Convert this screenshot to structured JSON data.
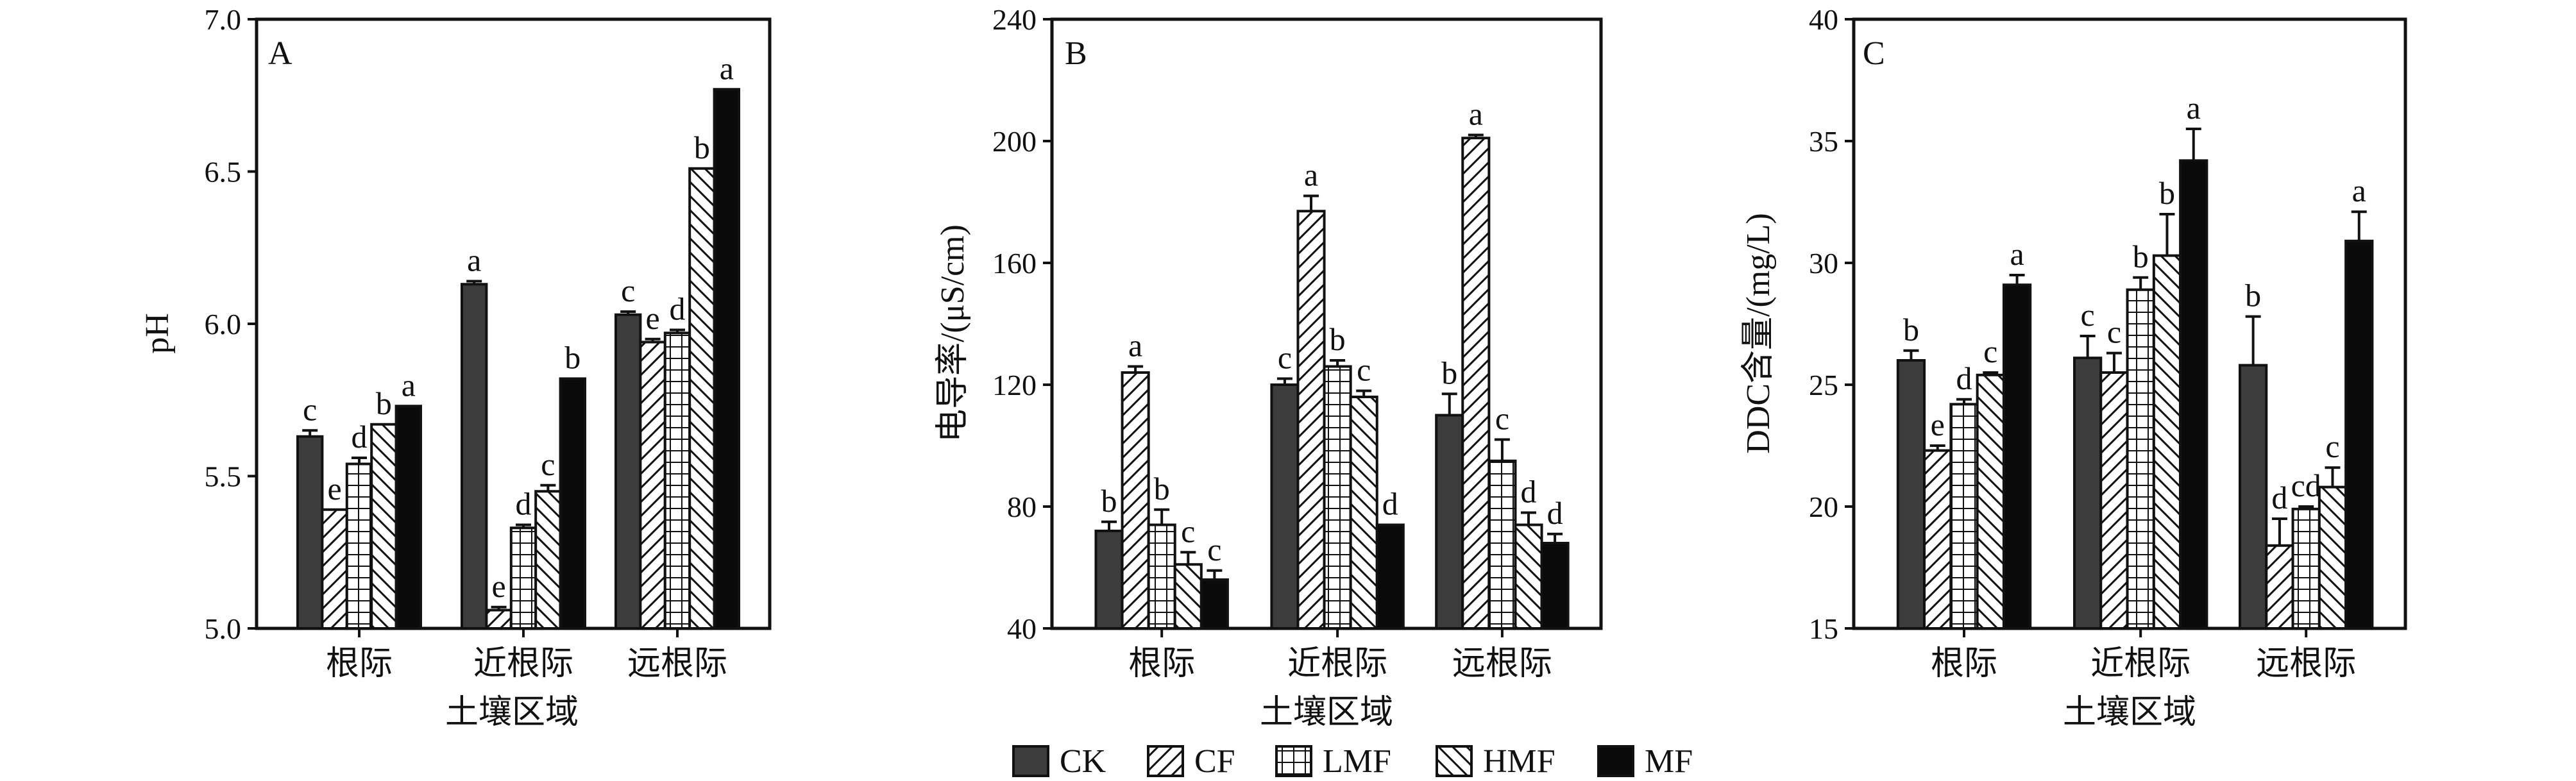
{
  "legend": [
    {
      "name": "CK",
      "pattern": "solid-dark"
    },
    {
      "name": "CF",
      "pattern": "diag-right"
    },
    {
      "name": "LMF",
      "pattern": "grid"
    },
    {
      "name": "HMF",
      "pattern": "diag-left"
    },
    {
      "name": "MF",
      "pattern": "solid-black"
    }
  ],
  "colors": {
    "CK": "#3c3c3c",
    "MF": "#0a0a0a",
    "axis": "#111111"
  },
  "chart_data": [
    {
      "type": "bar",
      "panel": "A",
      "ylabel": "pH",
      "xlabel": "土壤区域",
      "ylim": [
        5.0,
        7.0
      ],
      "yticks": [
        "5.0",
        "5.5",
        "6.0",
        "6.5",
        "7.0"
      ],
      "categories": [
        "根际",
        "近根际",
        "远根际"
      ],
      "series": [
        {
          "name": "CK",
          "values": [
            5.63,
            6.13,
            6.03
          ],
          "errors": [
            0.02,
            0.01,
            0.01
          ],
          "letters": [
            "c",
            "a",
            "c"
          ]
        },
        {
          "name": "CF",
          "values": [
            5.39,
            5.06,
            5.94
          ],
          "errors": [
            0.0,
            0.01,
            0.01
          ],
          "letters": [
            "e",
            "e",
            "e"
          ]
        },
        {
          "name": "LMF",
          "values": [
            5.54,
            5.33,
            5.97
          ],
          "errors": [
            0.02,
            0.01,
            0.01
          ],
          "letters": [
            "d",
            "d",
            "d"
          ]
        },
        {
          "name": "HMF",
          "values": [
            5.67,
            5.45,
            6.51
          ],
          "errors": [
            0.0,
            0.02,
            0.0
          ],
          "letters": [
            "b",
            "c",
            "b"
          ]
        },
        {
          "name": "MF",
          "values": [
            5.73,
            5.82,
            6.77
          ],
          "errors": [
            0.0,
            0.0,
            0.0
          ],
          "letters": [
            "a",
            "b",
            "a"
          ]
        }
      ]
    },
    {
      "type": "bar",
      "panel": "B",
      "ylabel": "电导率/(μS/cm)",
      "xlabel": "土壤区域",
      "ylim": [
        40,
        240
      ],
      "yticks": [
        "40",
        "80",
        "120",
        "160",
        "200",
        "240"
      ],
      "categories": [
        "根际",
        "近根际",
        "远根际"
      ],
      "series": [
        {
          "name": "CK",
          "values": [
            72,
            120,
            110
          ],
          "errors": [
            3,
            2,
            7
          ],
          "letters": [
            "b",
            "c",
            "b"
          ]
        },
        {
          "name": "CF",
          "values": [
            124,
            177,
            201
          ],
          "errors": [
            2,
            5,
            1
          ],
          "letters": [
            "a",
            "a",
            "a"
          ]
        },
        {
          "name": "LMF",
          "values": [
            74,
            126,
            95
          ],
          "errors": [
            5,
            2,
            7
          ],
          "letters": [
            "b",
            "b",
            "c"
          ]
        },
        {
          "name": "HMF",
          "values": [
            61,
            116,
            74
          ],
          "errors": [
            4,
            2,
            4
          ],
          "letters": [
            "c",
            "c",
            "d"
          ]
        },
        {
          "name": "MF",
          "values": [
            56,
            74,
            68
          ],
          "errors": [
            3,
            0,
            3
          ],
          "letters": [
            "c",
            "d",
            "d"
          ]
        }
      ]
    },
    {
      "type": "bar",
      "panel": "C",
      "ylabel": "DDC含量/(mg/L)",
      "xlabel": "土壤区域",
      "ylim": [
        15,
        40
      ],
      "yticks": [
        "15",
        "20",
        "25",
        "30",
        "35",
        "40"
      ],
      "categories": [
        "根际",
        "近根际",
        "远根际"
      ],
      "series": [
        {
          "name": "CK",
          "values": [
            26.0,
            26.1,
            25.8
          ],
          "errors": [
            0.4,
            0.9,
            2.0
          ],
          "letters": [
            "b",
            "c",
            "b"
          ]
        },
        {
          "name": "CF",
          "values": [
            22.3,
            25.5,
            18.4
          ],
          "errors": [
            0.2,
            0.8,
            1.1
          ],
          "letters": [
            "e",
            "c",
            "d"
          ]
        },
        {
          "name": "LMF",
          "values": [
            24.2,
            28.9,
            19.9
          ],
          "errors": [
            0.2,
            0.5,
            0.1
          ],
          "letters": [
            "d",
            "b",
            "cd"
          ]
        },
        {
          "name": "HMF",
          "values": [
            25.4,
            30.3,
            20.8
          ],
          "errors": [
            0.1,
            1.7,
            0.8
          ],
          "letters": [
            "c",
            "b",
            "c"
          ]
        },
        {
          "name": "MF",
          "values": [
            29.1,
            34.2,
            30.9
          ],
          "errors": [
            0.4,
            1.3,
            1.2
          ],
          "letters": [
            "a",
            "a",
            "a"
          ]
        }
      ]
    }
  ]
}
